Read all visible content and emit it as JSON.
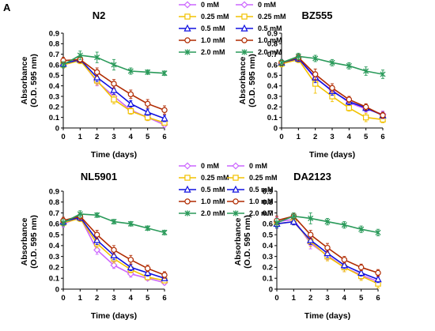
{
  "figure": {
    "panel_letter": "A"
  },
  "colors": {
    "0 mM": "#cc66ff",
    "0.25 mM": "#f2c200",
    "0.5 mM": "#1010e0",
    "1.0 mM": "#b02a00",
    "2.0 mM": "#2a9a5a"
  },
  "chart_data": [
    {
      "type": "line",
      "title": "N2",
      "xlabel": "Time (days)",
      "ylabel": "Absorbance (O.D. 595 nm)",
      "x": [
        0,
        1,
        2,
        3,
        4,
        5,
        6
      ],
      "xlim": [
        0,
        6
      ],
      "ylim": [
        0,
        0.9
      ],
      "ytick_step": 0.1,
      "legend_position": "top-right",
      "series": [
        {
          "name": "0 mM",
          "values": [
            0.6,
            0.65,
            0.44,
            0.3,
            0.17,
            0.1,
            0.03
          ],
          "err": [
            0.03,
            0.03,
            0.04,
            0.04,
            0.03,
            0.03,
            0.02
          ]
        },
        {
          "name": "0.25 mM",
          "values": [
            0.6,
            0.64,
            0.45,
            0.27,
            0.16,
            0.1,
            0.05
          ],
          "err": [
            0.03,
            0.03,
            0.04,
            0.04,
            0.03,
            0.03,
            0.02
          ]
        },
        {
          "name": "0.5 mM",
          "values": [
            0.61,
            0.65,
            0.48,
            0.36,
            0.23,
            0.15,
            0.09
          ],
          "err": [
            0.03,
            0.03,
            0.04,
            0.04,
            0.03,
            0.03,
            0.03
          ]
        },
        {
          "name": "1.0 mM",
          "values": [
            0.64,
            0.65,
            0.53,
            0.42,
            0.32,
            0.23,
            0.17
          ],
          "err": [
            0.03,
            0.03,
            0.04,
            0.04,
            0.04,
            0.04,
            0.04
          ]
        },
        {
          "name": "2.0 mM",
          "values": [
            0.6,
            0.69,
            0.67,
            0.6,
            0.54,
            0.53,
            0.52
          ],
          "err": [
            0.03,
            0.04,
            0.05,
            0.05,
            0.03,
            0.02,
            0.02
          ]
        }
      ]
    },
    {
      "type": "line",
      "title": "BZ555",
      "xlabel": "Time (days)",
      "ylabel": "Absorbance (O.D. 595 nm)",
      "x": [
        0,
        1,
        2,
        3,
        4,
        5,
        6
      ],
      "xlim": [
        0,
        6
      ],
      "ylim": [
        0,
        0.9
      ],
      "ytick_step": 0.1,
      "legend_position": "top-right",
      "series": [
        {
          "name": "0 mM",
          "values": [
            0.61,
            0.66,
            0.47,
            0.36,
            0.24,
            0.18,
            0.13
          ],
          "err": [
            0.03,
            0.03,
            0.05,
            0.04,
            0.03,
            0.03,
            0.03
          ]
        },
        {
          "name": "0.25 mM",
          "values": [
            0.61,
            0.65,
            0.42,
            0.3,
            0.19,
            0.1,
            0.08
          ],
          "err": [
            0.03,
            0.03,
            0.09,
            0.05,
            0.03,
            0.04,
            0.03
          ]
        },
        {
          "name": "0.5 mM",
          "values": [
            0.62,
            0.66,
            0.48,
            0.35,
            0.25,
            0.19,
            0.12
          ],
          "err": [
            0.03,
            0.03,
            0.05,
            0.04,
            0.03,
            0.03,
            0.03
          ]
        },
        {
          "name": "1.0 mM",
          "values": [
            0.62,
            0.67,
            0.51,
            0.38,
            0.27,
            0.2,
            0.12
          ],
          "err": [
            0.03,
            0.03,
            0.05,
            0.04,
            0.03,
            0.03,
            0.03
          ]
        },
        {
          "name": "2.0 mM",
          "values": [
            0.62,
            0.68,
            0.66,
            0.62,
            0.59,
            0.54,
            0.51
          ],
          "err": [
            0.03,
            0.03,
            0.03,
            0.03,
            0.03,
            0.04,
            0.04
          ]
        }
      ]
    },
    {
      "type": "line",
      "title": "NL5901",
      "xlabel": "Time (days)",
      "ylabel": "Absorbance (O.D. 595 nm)",
      "x": [
        0,
        1,
        2,
        3,
        4,
        5,
        6
      ],
      "xlim": [
        0,
        6
      ],
      "ylim": [
        0,
        0.9
      ],
      "ytick_step": 0.1,
      "legend_position": "top-right",
      "series": [
        {
          "name": "0 mM",
          "values": [
            0.6,
            0.66,
            0.36,
            0.22,
            0.14,
            0.1,
            0.06
          ],
          "err": [
            0.03,
            0.03,
            0.04,
            0.03,
            0.03,
            0.02,
            0.02
          ]
        },
        {
          "name": "0.25 mM",
          "values": [
            0.61,
            0.65,
            0.42,
            0.28,
            0.18,
            0.11,
            0.08
          ],
          "err": [
            0.03,
            0.03,
            0.04,
            0.04,
            0.03,
            0.02,
            0.02
          ]
        },
        {
          "name": "0.5 mM",
          "values": [
            0.62,
            0.66,
            0.45,
            0.31,
            0.2,
            0.15,
            0.1
          ],
          "err": [
            0.03,
            0.03,
            0.04,
            0.04,
            0.03,
            0.03,
            0.02
          ]
        },
        {
          "name": "1.0 mM",
          "values": [
            0.63,
            0.67,
            0.5,
            0.36,
            0.27,
            0.19,
            0.13
          ],
          "err": [
            0.03,
            0.03,
            0.04,
            0.04,
            0.04,
            0.03,
            0.03
          ]
        },
        {
          "name": "2.0 mM",
          "values": [
            0.61,
            0.69,
            0.68,
            0.62,
            0.6,
            0.56,
            0.52
          ],
          "err": [
            0.03,
            0.03,
            0.02,
            0.02,
            0.02,
            0.02,
            0.02
          ]
        }
      ]
    },
    {
      "type": "line",
      "title": "DA2123",
      "xlabel": "Time (days)",
      "ylabel": "Absorbance (O.D. 595 nm)",
      "x": [
        0,
        1,
        2,
        3,
        4,
        5,
        6
      ],
      "xlim": [
        0,
        6
      ],
      "ylim": [
        0,
        0.9
      ],
      "ytick_step": 0.1,
      "legend_position": "top-right",
      "series": [
        {
          "name": "0 mM",
          "values": [
            0.62,
            0.64,
            0.42,
            0.31,
            0.2,
            0.13,
            0.07
          ],
          "err": [
            0.04,
            0.03,
            0.05,
            0.04,
            0.04,
            0.04,
            0.04
          ]
        },
        {
          "name": "0.25 mM",
          "values": [
            0.6,
            0.62,
            0.44,
            0.3,
            0.2,
            0.12,
            0.05
          ],
          "err": [
            0.04,
            0.03,
            0.05,
            0.04,
            0.04,
            0.04,
            0.04
          ]
        },
        {
          "name": "0.5 mM",
          "values": [
            0.6,
            0.62,
            0.45,
            0.33,
            0.22,
            0.15,
            0.09
          ],
          "err": [
            0.04,
            0.03,
            0.04,
            0.04,
            0.03,
            0.03,
            0.03
          ]
        },
        {
          "name": "1.0 mM",
          "values": [
            0.63,
            0.67,
            0.5,
            0.38,
            0.27,
            0.2,
            0.15
          ],
          "err": [
            0.04,
            0.03,
            0.04,
            0.04,
            0.03,
            0.03,
            0.03
          ]
        },
        {
          "name": "2.0 mM",
          "values": [
            0.61,
            0.67,
            0.65,
            0.62,
            0.59,
            0.55,
            0.52
          ],
          "err": [
            0.04,
            0.03,
            0.05,
            0.03,
            0.03,
            0.03,
            0.03
          ]
        }
      ]
    }
  ]
}
